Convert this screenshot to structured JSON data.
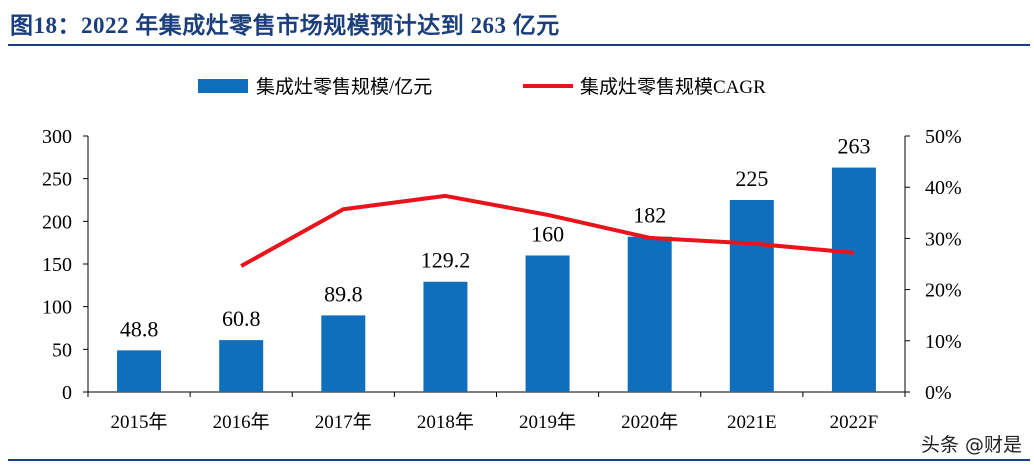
{
  "title": "图18：2022 年集成灶零售市场规模预计达到 263 亿元",
  "watermark": "头条 @财是",
  "chart_data": {
    "type": "bar+line",
    "categories": [
      "2015年",
      "2016年",
      "2017年",
      "2018年",
      "2019年",
      "2020年",
      "2021E",
      "2022F"
    ],
    "series": [
      {
        "name": "集成灶零售规模/亿元",
        "type": "bar",
        "axis": "left",
        "color": "#0f6fbd",
        "values": [
          48.8,
          60.8,
          89.8,
          129.2,
          160,
          182,
          225,
          263
        ],
        "data_labels": [
          "48.8",
          "60.8",
          "89.8",
          "129.2",
          "160",
          "182",
          "225",
          "263"
        ]
      },
      {
        "name": "集成灶零售规模CAGR",
        "type": "line",
        "axis": "right",
        "color": "#e8141b",
        "values": [
          null,
          24.6,
          35.7,
          38.3,
          34.6,
          30.1,
          29.0,
          27.2
        ]
      }
    ],
    "left_axis": {
      "min": 0,
      "max": 300,
      "ticks": [
        "0",
        "50",
        "100",
        "150",
        "200",
        "250",
        "300"
      ]
    },
    "right_axis": {
      "min": 0,
      "max": 50,
      "ticks": [
        "0%",
        "10%",
        "20%",
        "30%",
        "40%",
        "50%"
      ]
    },
    "legend_position": "top",
    "grid": false
  }
}
